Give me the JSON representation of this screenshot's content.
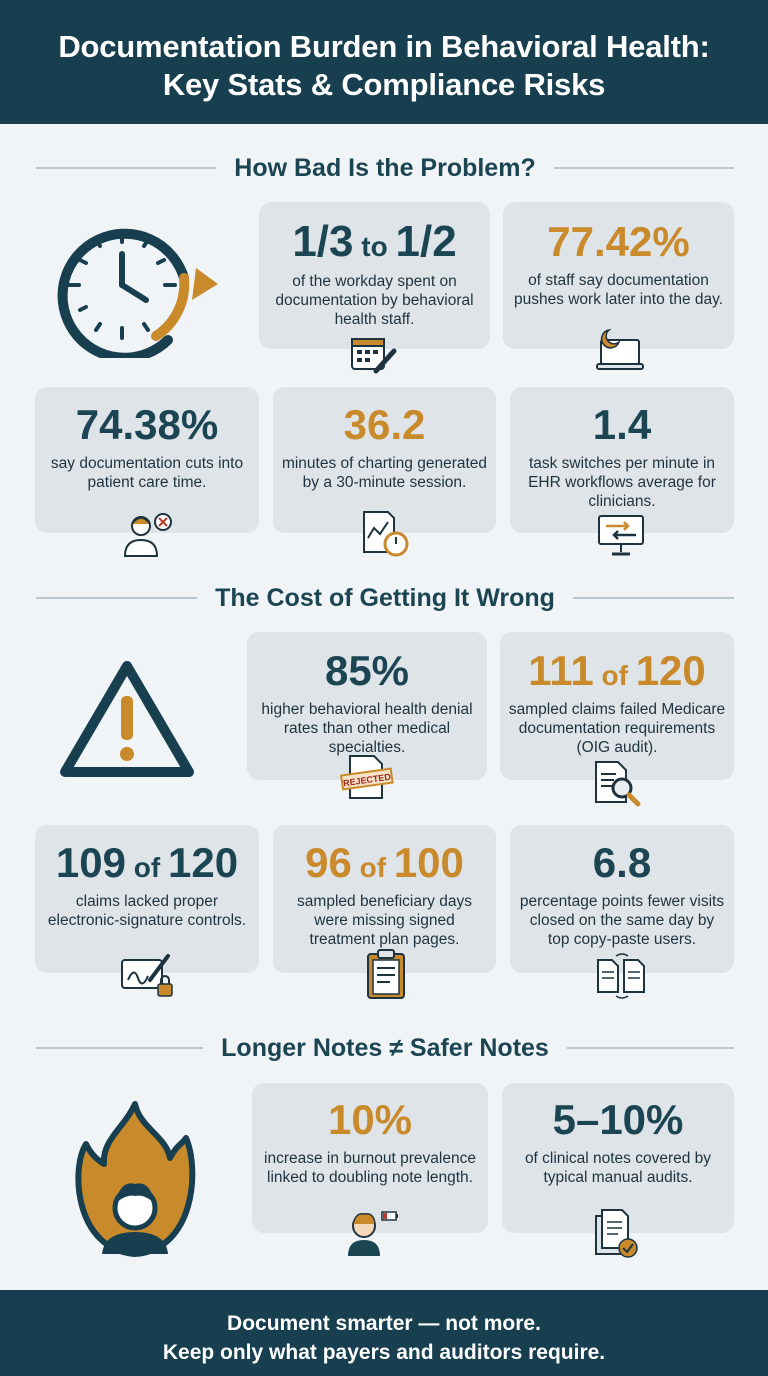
{
  "header": {
    "title_line1": "Documentation Burden in Behavioral Health:",
    "title_line2": "Key Stats & Compliance Risks"
  },
  "sections": {
    "problem": "How Bad Is the Problem?",
    "cost": "The Cost of Getting It Wrong",
    "notes": "Longer Notes ≠ Safer Notes"
  },
  "stats": {
    "workday": {
      "a": "1/3",
      "sep": " to ",
      "b": "1/2",
      "desc": "of the workday spent on documentation by behavioral health staff.",
      "icon": "calendar-pencil-icon"
    },
    "later": {
      "value": "77.42%",
      "desc": "of staff say documentation pushes work later into the day.",
      "icon": "moon-laptop-icon"
    },
    "care": {
      "value": "74.38%",
      "desc": "say documentation cuts into patient care time.",
      "icon": "clinician-x-icon"
    },
    "charting": {
      "value": "36.2",
      "desc": "minutes of charting generated by a 30-minute session.",
      "icon": "chart-stopwatch-icon"
    },
    "switches": {
      "value": "1.4",
      "desc": "task switches per minute in EHR workflows average for clinicians.",
      "icon": "monitor-arrows-icon"
    },
    "denial": {
      "value": "85%",
      "desc": "higher behavioral health denial rates than other medical specialties.",
      "icon": "rejected-document-icon",
      "stamp": "REJECTED"
    },
    "claims_failed": {
      "a": "111",
      "sep": " of ",
      "b": "120",
      "desc": "sampled claims failed Medicare documentation requirements (OIG audit).",
      "icon": "document-magnifier-icon"
    },
    "esig": {
      "a": "109",
      "sep": " of ",
      "b": "120",
      "desc": "claims lacked proper electronic-signature controls.",
      "icon": "tablet-signature-lock-icon"
    },
    "plan_pages": {
      "a": "96",
      "sep": " of ",
      "b": "100",
      "desc": "sampled beneficiary days were missing signed treatment plan pages.",
      "icon": "clipboard-icon"
    },
    "copy_paste": {
      "value": "6.8",
      "desc": "percentage points fewer visits closed on the same day by top copy-paste users.",
      "icon": "copy-documents-icon"
    },
    "burnout": {
      "value": "10%",
      "desc": "increase in burnout prevalence linked to doubling note length.",
      "icon": "tired-person-battery-icon"
    },
    "audits": {
      "value": "5–10%",
      "desc": "of clinical notes covered by typical manual audits.",
      "icon": "documents-check-icon"
    }
  },
  "colors": {
    "navy": "#173f4f",
    "teal": "#1c4553",
    "gold": "#c98a2b",
    "card": "#dfe4e8",
    "background": "#f1f4f7"
  },
  "footer": {
    "line1": "Document smarter — not more.",
    "line2": "Keep only what payers and auditors require."
  }
}
